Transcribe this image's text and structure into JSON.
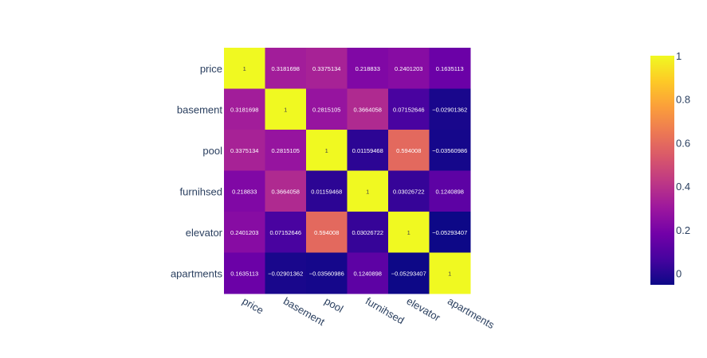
{
  "chart_data": {
    "type": "heatmap",
    "x_labels": [
      "price",
      "basement",
      "pool",
      "furnihsed",
      "elevator",
      "apartments"
    ],
    "y_labels": [
      "price",
      "basement",
      "pool",
      "furnihsed",
      "elevator",
      "apartments"
    ],
    "z": [
      [
        1,
        0.3181698,
        0.3375134,
        0.218833,
        0.2401203,
        0.1635113
      ],
      [
        0.3181698,
        1,
        0.2815105,
        0.3664058,
        0.07152646,
        -0.02901362
      ],
      [
        0.3375134,
        0.2815105,
        1,
        0.01159468,
        0.594008,
        -0.03560986
      ],
      [
        0.218833,
        0.3664058,
        0.01159468,
        1,
        0.03026722,
        0.1240898
      ],
      [
        0.2401203,
        0.07152646,
        0.594008,
        0.03026722,
        1,
        -0.05293407
      ],
      [
        0.1635113,
        -0.02901362,
        -0.03560986,
        0.1240898,
        -0.05293407,
        1
      ]
    ],
    "cell_text": [
      [
        "1",
        "0.3181698",
        "0.3375134",
        "0.218833",
        "0.2401203",
        "0.1635113"
      ],
      [
        "0.3181698",
        "1",
        "0.2815105",
        "0.3664058",
        "0.07152646",
        "−0.02901362"
      ],
      [
        "0.3375134",
        "0.2815105",
        "1",
        "0.01159468",
        "0.594008",
        "−0.03560986"
      ],
      [
        "0.218833",
        "0.3664058",
        "0.01159468",
        "1",
        "0.03026722",
        "0.1240898"
      ],
      [
        "0.2401203",
        "0.07152646",
        "0.594008",
        "0.03026722",
        "1",
        "−0.05293407"
      ],
      [
        "0.1635113",
        "−0.02901362",
        "−0.03560986",
        "0.1240898",
        "−0.05293407",
        "1"
      ]
    ],
    "zrange": [
      -0.05293407,
      1
    ],
    "colorscale": [
      "#0d0887",
      "#46039f",
      "#7201a8",
      "#9c179e",
      "#bd3786",
      "#d8576b",
      "#ed7953",
      "#fb9f3a",
      "#fdca26",
      "#f0f921"
    ],
    "colorbar": {
      "tick_values": [
        0,
        0.2,
        0.4,
        0.6,
        0.8,
        1
      ],
      "tick_labels": [
        "0",
        "0.2",
        "0.4",
        "0.6",
        "0.8",
        "1"
      ]
    },
    "grid": false
  }
}
